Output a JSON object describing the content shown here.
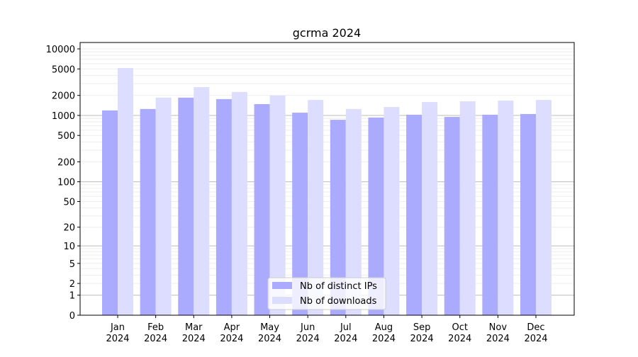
{
  "chart_data": {
    "type": "bar",
    "title": "gcrma 2024",
    "xlabel": "",
    "ylabel": "",
    "yscale": "symlog",
    "ylim": [
      0,
      13000
    ],
    "grid": true,
    "legend_position": "bottom-center",
    "categories": [
      "Jan\n2024",
      "Feb\n2024",
      "Mar\n2024",
      "Apr\n2024",
      "May\n2024",
      "Jun\n2024",
      "Jul\n2024",
      "Aug\n2024",
      "Sep\n2024",
      "Oct\n2024",
      "Nov\n2024",
      "Dec\n2024"
    ],
    "yticks": [
      0,
      1,
      2,
      5,
      10,
      20,
      50,
      100,
      200,
      500,
      1000,
      2000,
      5000,
      10000
    ],
    "series": [
      {
        "name": "Nb of distinct IPs",
        "color": "#aaaaff",
        "values": [
          1190,
          1250,
          1850,
          1760,
          1480,
          1100,
          860,
          930,
          1025,
          950,
          1025,
          1050
        ]
      },
      {
        "name": "Nb of downloads",
        "color": "#ddddff",
        "values": [
          5160,
          1850,
          2660,
          2250,
          1990,
          1710,
          1250,
          1340,
          1590,
          1630,
          1670,
          1710
        ]
      }
    ]
  }
}
